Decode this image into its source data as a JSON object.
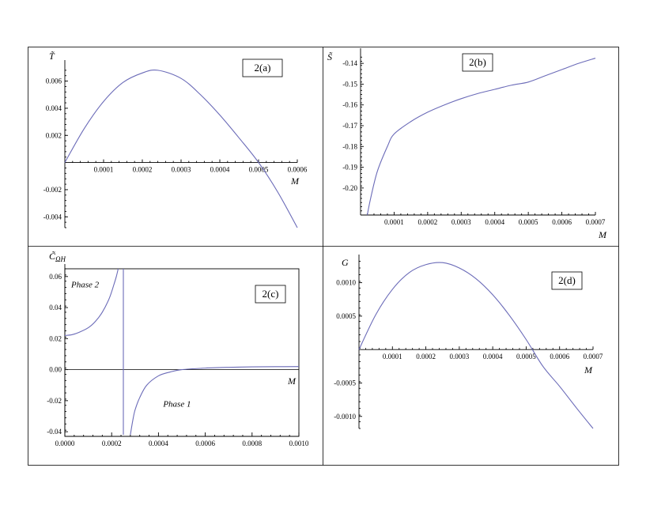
{
  "chart_data": [
    {
      "id": "a",
      "type": "line",
      "panel_label": "2(a)",
      "ylabel": "T̃",
      "xlabel": "M",
      "xlim": [
        0,
        0.0006
      ],
      "ylim": [
        -0.0048,
        0.0072
      ],
      "xticks": [
        "0.0001",
        "0.0002",
        "0.0003",
        "0.0004",
        "0.0005",
        "0.0006"
      ],
      "yticks": [
        "0.006",
        "0.004",
        "0.002",
        "-0.002",
        "-0.004"
      ],
      "x": [
        0,
        5e-05,
        0.0001,
        0.00015,
        0.0002,
        0.00024,
        0.0003,
        0.00035,
        0.0004,
        0.00045,
        0.0005,
        0.00055,
        0.0006
      ],
      "y": [
        0.0,
        0.0025,
        0.0045,
        0.0059,
        0.0066,
        0.0068,
        0.0062,
        0.005,
        0.0035,
        0.0018,
        0.0,
        -0.0022,
        -0.0048
      ]
    },
    {
      "id": "b",
      "type": "line",
      "panel_label": "2(b)",
      "ylabel": "S̃",
      "xlabel": "M",
      "xlim": [
        0,
        0.0007
      ],
      "ylim": [
        -0.213,
        -0.135
      ],
      "xticks": [
        "0.0001",
        "0.0002",
        "0.0003",
        "0.0004",
        "0.0005",
        "0.0006",
        "0.0007"
      ],
      "yticks": [
        "-0.14",
        "-0.15",
        "-0.16",
        "-0.17",
        "-0.18",
        "-0.19",
        "-0.20"
      ],
      "x": [
        2e-05,
        3e-05,
        5e-05,
        8e-05,
        0.0001,
        0.00015,
        0.0002,
        0.00025,
        0.0003,
        0.00035,
        0.0004,
        0.00045,
        0.0005,
        0.00055,
        0.0006,
        0.00065,
        0.0007
      ],
      "y": [
        -0.213,
        -0.205,
        -0.192,
        -0.18,
        -0.174,
        -0.168,
        -0.1635,
        -0.16,
        -0.157,
        -0.1545,
        -0.1525,
        -0.1505,
        -0.149,
        -0.146,
        -0.143,
        -0.14,
        -0.1375
      ]
    },
    {
      "id": "c",
      "type": "line",
      "panel_label": "2(c)",
      "ylabel": "C̃ΩH",
      "xlabel": "M",
      "xlim": [
        0,
        0.001
      ],
      "ylim": [
        -0.043,
        0.065
      ],
      "xticks": [
        "0.0000",
        "0.0002",
        "0.0004",
        "0.0006",
        "0.0008",
        "0.0010"
      ],
      "yticks": [
        "0.06",
        "0.04",
        "0.02",
        "0.00",
        "-0.02",
        "-0.04"
      ],
      "asymptote_x": 0.00025,
      "annotations": [
        "Phase 2",
        "Phase 1"
      ],
      "series": [
        {
          "x": [
            0,
            3e-05,
            6e-05,
            0.0001,
            0.00013,
            0.00016,
            0.00019,
            0.00021,
            0.00022,
            0.000228
          ],
          "y": [
            0.022,
            0.0225,
            0.024,
            0.027,
            0.031,
            0.037,
            0.046,
            0.055,
            0.06,
            0.065
          ]
        },
        {
          "x": [
            0.00028,
            0.00029,
            0.0003,
            0.00032,
            0.00035,
            0.0004,
            0.00045,
            0.0005,
            0.0006,
            0.0007,
            0.0008,
            0.0009,
            0.001
          ],
          "y": [
            -0.042,
            -0.033,
            -0.026,
            -0.018,
            -0.01,
            -0.004,
            -0.0015,
            0.0,
            0.001,
            0.0015,
            0.0018,
            0.0019,
            0.002
          ]
        }
      ]
    },
    {
      "id": "d",
      "type": "line",
      "panel_label": "2(d)",
      "ylabel": "G",
      "xlabel": "M",
      "xlim": [
        0,
        0.0007
      ],
      "ylim": [
        -0.00118,
        0.00135
      ],
      "xticks": [
        "0.0001",
        "0.0002",
        "0.0003",
        "0.0004",
        "0.0005",
        "0.0006",
        "0.0007"
      ],
      "yticks": [
        "0.0010",
        "0.0005",
        "-0.0005",
        "-0.0010"
      ],
      "x": [
        0,
        5e-05,
        0.0001,
        0.00015,
        0.0002,
        0.00025,
        0.0003,
        0.00035,
        0.0004,
        0.00045,
        0.0005,
        0.00055,
        0.0006,
        0.00065,
        0.0007
      ],
      "y": [
        0.0,
        0.00052,
        0.0009,
        0.00115,
        0.00127,
        0.0013,
        0.00122,
        0.00106,
        0.00082,
        0.00051,
        0.00015,
        -0.00025,
        -0.00055,
        -0.00087,
        -0.00118
      ]
    }
  ]
}
